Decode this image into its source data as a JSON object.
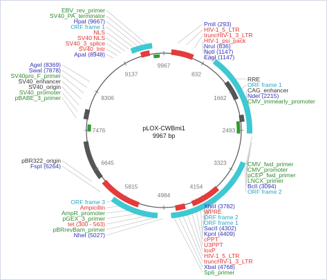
{
  "map": {
    "name": "pLOX-CWBmi1",
    "size_label": "9967 bp",
    "total_bp": 9967,
    "ticks": [
      "9967",
      "832",
      "1662",
      "2493",
      "3323",
      "4154",
      "4984",
      "5815",
      "6645",
      "7476",
      "8306",
      "9137"
    ]
  },
  "colors": {
    "orf": "#3ec8d2",
    "feature_red": "#e53b3b",
    "feature_green": "#2f9a2f",
    "feature_gray": "#555555",
    "enzyme_blue": "#3131b7",
    "backbone": "#555555",
    "leader": "#b5b5b5"
  },
  "labels": {
    "left_top": [
      {
        "text": "EBV_rev_primer",
        "color": "#2f8a2f"
      },
      {
        "text": "SV40_PA_terminator",
        "color": "#2f8a2f"
      },
      {
        "text": "HpaI (9667)",
        "color": "#3131b7"
      },
      {
        "text": "ORF frame 1",
        "color": "#2aa6c0"
      },
      {
        "text": "NLS",
        "color": "#e23131"
      },
      {
        "text": "SV40 NLS",
        "color": "#e23131"
      },
      {
        "text": "SV40_3_splice",
        "color": "#e23131"
      },
      {
        "text": "SV40_Intr",
        "color": "#e23131"
      },
      {
        "text": "ApaI (8948)",
        "color": "#3131b7"
      }
    ],
    "left_mid": [
      {
        "text": "AgeI (8369)",
        "color": "#3131b7"
      },
      {
        "text": "SwaI (7878)",
        "color": "#3131b7"
      },
      {
        "text": "SV40pro_F_primer",
        "color": "#2f8a2f"
      },
      {
        "text": "SV40_enhancer",
        "color": "#333333"
      },
      {
        "text": "SV40_origin",
        "color": "#333333"
      },
      {
        "text": "SV40_promoter",
        "color": "#2f8a2f"
      },
      {
        "text": "pBABE_3_primer",
        "color": "#2f8a2f"
      }
    ],
    "left_low": [
      {
        "text": "pBR322_origin",
        "color": "#333333"
      },
      {
        "text": "FspI (6264)",
        "color": "#3131b7"
      }
    ],
    "left_bottom": [
      {
        "text": "ORF frame 3",
        "color": "#2aa6c0"
      },
      {
        "text": "Ampicillin",
        "color": "#e23131"
      },
      {
        "text": "AmpR_promoter",
        "color": "#2f8a2f"
      },
      {
        "text": "pGEX_3_primer",
        "color": "#2f8a2f"
      },
      {
        "text": "tet (300 - 563)",
        "color": "#e23131"
      },
      {
        "text": "pBRrevBam_primer",
        "color": "#2f8a2f"
      },
      {
        "text": "NheI (5027)",
        "color": "#3131b7"
      }
    ],
    "right_top": [
      {
        "text": "PmlI (293)",
        "color": "#3131b7"
      },
      {
        "text": "HIV-1_5_LTR",
        "color": "#e23131"
      },
      {
        "text": "truncHIV-1_3_LTR",
        "color": "#e23131"
      },
      {
        "text": "HIV-1_psi_pack",
        "color": "#e23131"
      },
      {
        "text": "NruI (836)",
        "color": "#3131b7"
      },
      {
        "text": "NotI (1147)",
        "color": "#3131b7"
      },
      {
        "text": "EagI (1147)",
        "color": "#3131b7"
      }
    ],
    "right_mid": [
      {
        "text": "RRE",
        "color": "#333333"
      },
      {
        "text": "ORF frame 1",
        "color": "#2aa6c0"
      },
      {
        "text": "CAG_enhancer",
        "color": "#333333"
      },
      {
        "text": "NdeI (2215)",
        "color": "#3131b7"
      },
      {
        "text": "CMV_immearly_promoter",
        "color": "#2f8a2f"
      }
    ],
    "right_low": [
      {
        "text": "CMV_fwd_primer",
        "color": "#2f8a2f"
      },
      {
        "text": "CMV_promoter",
        "color": "#2f8a2f"
      },
      {
        "text": "pCEP_fwd_primer",
        "color": "#2f8a2f"
      },
      {
        "text": "LNCX_primer",
        "color": "#2f8a2f"
      },
      {
        "text": "BclI (3094)",
        "color": "#3131b7"
      },
      {
        "text": "ORF frame 2",
        "color": "#2aa6c0"
      }
    ],
    "right_bottom": [
      {
        "text": "XhoI (3782)",
        "color": "#3131b7"
      },
      {
        "text": "WPRE",
        "color": "#e23131"
      },
      {
        "text": "ORF frame 2",
        "color": "#2aa6c0"
      },
      {
        "text": "ORF frame 1",
        "color": "#2aa6c0"
      },
      {
        "text": "SacII (4302)",
        "color": "#3131b7"
      },
      {
        "text": "KpnI (4409)",
        "color": "#3131b7"
      },
      {
        "text": "cPPT",
        "color": "#e23131"
      },
      {
        "text": "U3PPT",
        "color": "#e23131"
      },
      {
        "text": "loxP",
        "color": "#e23131"
      },
      {
        "text": "HIV-1_5_LTR",
        "color": "#e23131"
      },
      {
        "text": "truncHIV-1_3_LTR",
        "color": "#e23131"
      },
      {
        "text": "XbaI (4768)",
        "color": "#3131b7"
      },
      {
        "text": "Sp6_primer",
        "color": "#2f8a2f"
      }
    ]
  },
  "features": [
    {
      "type": "orf",
      "start": 1000,
      "end": 2550
    },
    {
      "type": "orf",
      "start": 3450,
      "end": 4850
    },
    {
      "type": "orf",
      "start": 5100,
      "end": 6000
    },
    {
      "type": "orf",
      "start": 9350,
      "end": 9750
    },
    {
      "type": "orf",
      "start": 3100,
      "end": 3600
    },
    {
      "type": "red",
      "start": 150,
      "end": 600
    },
    {
      "type": "red",
      "start": 3800,
      "end": 4400
    },
    {
      "type": "red",
      "start": 4550,
      "end": 4750
    },
    {
      "type": "red",
      "start": 5500,
      "end": 6350
    },
    {
      "type": "red",
      "start": 9500,
      "end": 9680
    },
    {
      "type": "gray",
      "start": 1450,
      "end": 1850
    },
    {
      "type": "gray",
      "start": 2180,
      "end": 2320
    },
    {
      "type": "gray",
      "start": 6450,
      "end": 7250
    },
    {
      "type": "gray",
      "start": 7700,
      "end": 7900
    },
    {
      "type": "green",
      "start": 2300,
      "end": 2560
    },
    {
      "type": "green",
      "start": 9750,
      "end": 9880
    },
    {
      "type": "green",
      "start": 7450,
      "end": 7600
    }
  ]
}
